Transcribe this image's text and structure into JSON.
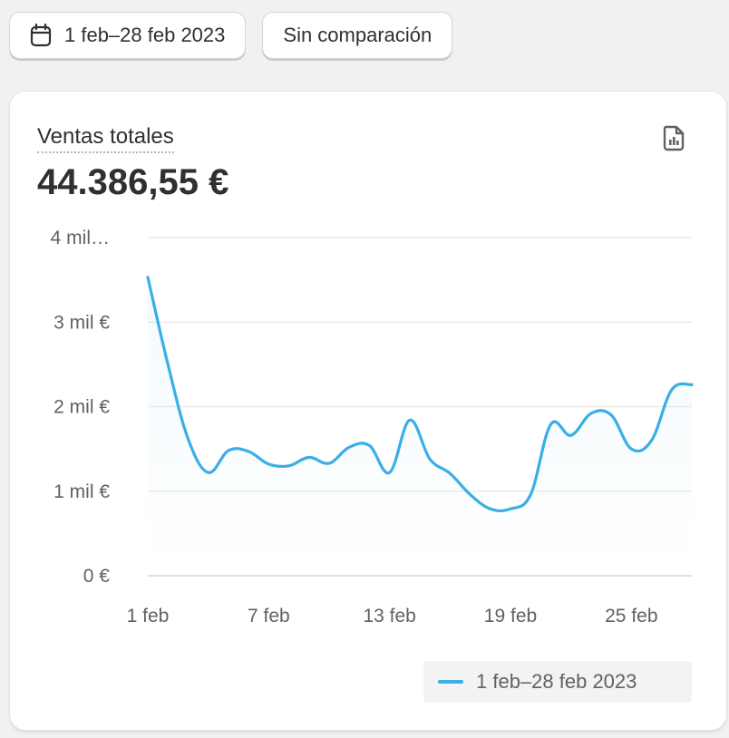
{
  "toolbar": {
    "date_range_label": "1 feb–28 feb 2023",
    "date_range_icon": "calendar-icon",
    "comparison_label": "Sin comparación"
  },
  "card": {
    "metric_title": "Ventas totales",
    "metric_value": "44.386,55 €",
    "report_icon": "report-icon"
  },
  "colors": {
    "series": "#3aaee6",
    "grid": "#ebebeb",
    "axis": "#e0e0e0",
    "text": "#303030",
    "muted": "#616161"
  },
  "chart_data": {
    "type": "line",
    "y_ticks": [
      {
        "value": 0,
        "label": "0 €"
      },
      {
        "value": 1000,
        "label": "1 mil €"
      },
      {
        "value": 2000,
        "label": "2 mil €"
      },
      {
        "value": 3000,
        "label": "3 mil €"
      },
      {
        "value": 4000,
        "label": "4 mil…"
      }
    ],
    "ylim": [
      0,
      4000
    ],
    "x_ticks": [
      {
        "day": 1,
        "label": "1 feb"
      },
      {
        "day": 7,
        "label": "7 feb"
      },
      {
        "day": 13,
        "label": "13 feb"
      },
      {
        "day": 19,
        "label": "19 feb"
      },
      {
        "day": 25,
        "label": "25 feb"
      }
    ],
    "xlim": [
      1,
      28
    ],
    "series": [
      {
        "name": "1 feb–28 feb 2023",
        "x": [
          1,
          2,
          3,
          4,
          5,
          6,
          7,
          8,
          9,
          10,
          11,
          12,
          13,
          14,
          15,
          16,
          17,
          18,
          19,
          20,
          21,
          22,
          23,
          24,
          25,
          26,
          27,
          28
        ],
        "values": [
          3530,
          2500,
          1620,
          1220,
          1480,
          1470,
          1320,
          1300,
          1400,
          1330,
          1520,
          1540,
          1220,
          1840,
          1380,
          1210,
          960,
          790,
          790,
          960,
          1790,
          1660,
          1920,
          1900,
          1500,
          1600,
          2200,
          2260
        ]
      }
    ],
    "grid": true,
    "legend": "bottom-right"
  }
}
